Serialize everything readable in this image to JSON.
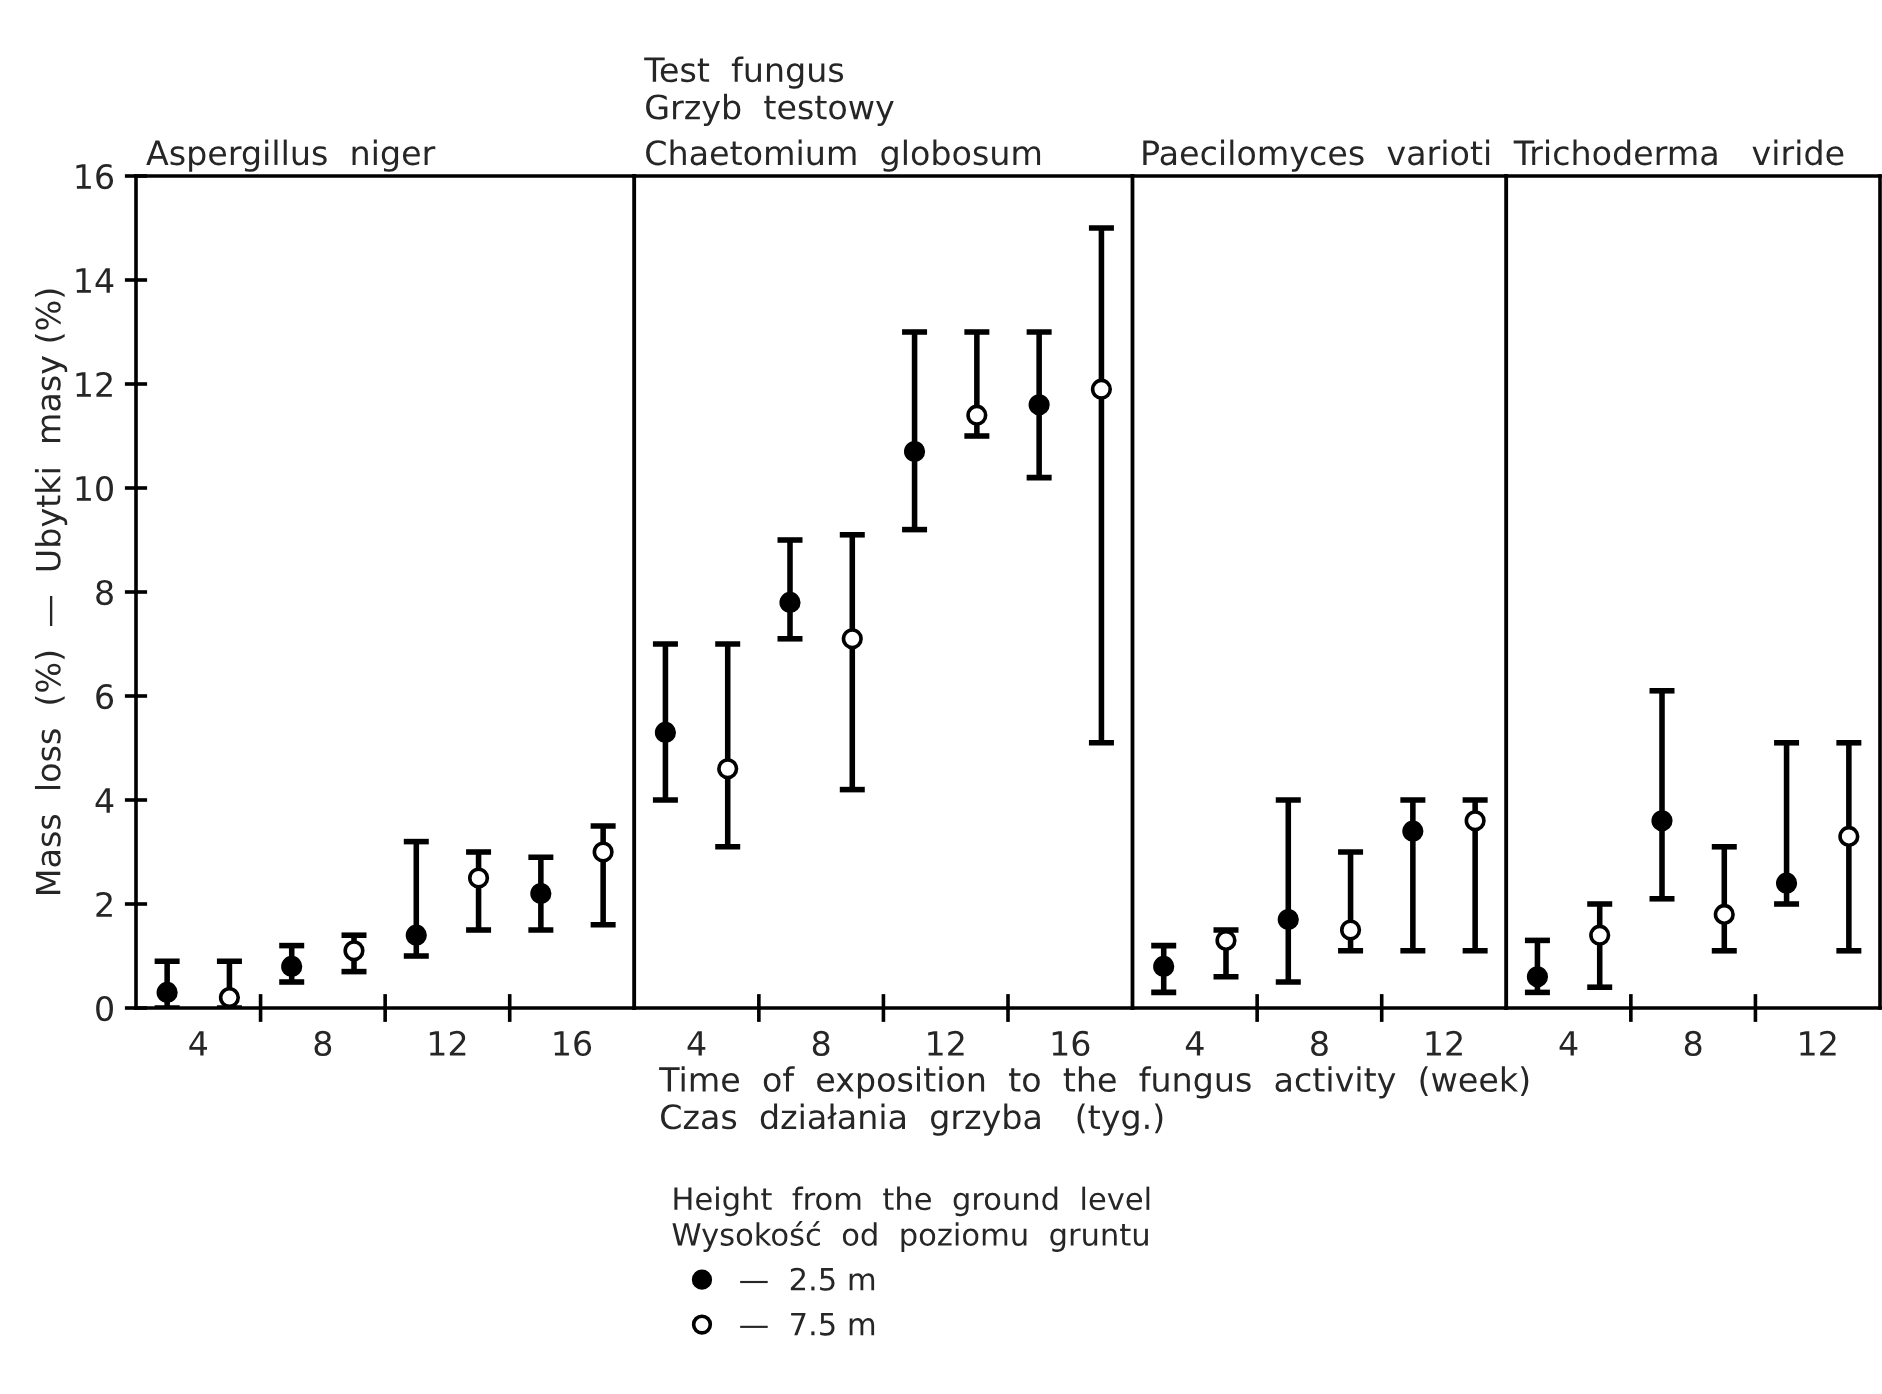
{
  "chart_data": [
    {
      "type": "scatter",
      "title": "Aspergillus  niger",
      "ylabel": "Mass  loss  (%)  —  Ubytki  masy (%)",
      "xlim": [
        2,
        18
      ],
      "xticks": [
        {
          "value": 4,
          "label": "4"
        },
        {
          "value": 6,
          "label": null
        },
        {
          "value": 8,
          "label": "8"
        },
        {
          "value": 10,
          "label": null
        },
        {
          "value": 12,
          "label": "12"
        },
        {
          "value": 14,
          "label": null
        },
        {
          "value": 16,
          "label": "16"
        }
      ],
      "ylim": [
        0,
        16
      ],
      "yticks": [
        0,
        2,
        4,
        6,
        8,
        10,
        12,
        14,
        16
      ],
      "marker": "circle",
      "grid": false,
      "series": [
        {
          "color": "#000000",
          "x": [
            3,
            7,
            11,
            15
          ],
          "values": [
            0.3,
            0.8,
            1.4,
            2.2
          ],
          "errors": [
            [
              0,
              0.9
            ],
            [
              0.5,
              1.2
            ],
            [
              1.0,
              3.2
            ],
            [
              1.5,
              2.9
            ]
          ]
        },
        {
          "color": "#ffffff",
          "x": [
            5,
            9,
            13,
            17
          ],
          "values": [
            0.2,
            1.1,
            2.5,
            3.0
          ],
          "errors": [
            [
              0,
              0.9
            ],
            [
              0.7,
              1.4
            ],
            [
              1.5,
              3.0
            ],
            [
              1.6,
              3.5
            ]
          ]
        }
      ]
    },
    {
      "type": "scatter",
      "title": "Chaetomium  globosum",
      "annotations": [
        "Test  fungus\nGrzyb  testowy"
      ],
      "xlabel": "Time  of  exposition  to  the  fungus  activity  (week)\nCzas  działania  grzyba   (tyg.)",
      "legend_title": "Height  from  the  ground  level\nWysokość  od  poziomu  gruntu",
      "legend": "bottom",
      "tick_labels": "x",
      "xlim": [
        2,
        18
      ],
      "xticks": [
        {
          "value": 4,
          "label": "4"
        },
        {
          "value": 6,
          "label": null
        },
        {
          "value": 8,
          "label": "8"
        },
        {
          "value": 10,
          "label": null
        },
        {
          "value": 12,
          "label": "12"
        },
        {
          "value": 14,
          "label": null
        },
        {
          "value": 16,
          "label": "16"
        }
      ],
      "ylim": [
        0,
        16
      ],
      "marker": "circle",
      "grid": false,
      "series": [
        {
          "name": "—  2.5 m",
          "color": "#000000",
          "x": [
            3,
            7,
            11,
            15
          ],
          "values": [
            5.3,
            7.8,
            10.7,
            11.6
          ],
          "errors": [
            [
              4.0,
              7.0
            ],
            [
              7.1,
              9.0
            ],
            [
              9.2,
              13.0
            ],
            [
              10.2,
              13.0
            ]
          ]
        },
        {
          "name": "—  7.5 m",
          "color": "#ffffff",
          "x": [
            5,
            9,
            13,
            17
          ],
          "values": [
            4.6,
            7.1,
            11.4,
            11.9
          ],
          "errors": [
            [
              3.1,
              7.0
            ],
            [
              4.2,
              9.1
            ],
            [
              11.0,
              13.0
            ],
            [
              5.1,
              15.0
            ]
          ]
        }
      ]
    },
    {
      "type": "scatter",
      "title": "Paecilomyces  varioti",
      "tick_labels": "x",
      "xlim": [
        2,
        14
      ],
      "xticks": [
        {
          "value": 4,
          "label": "4"
        },
        {
          "value": 6,
          "label": null
        },
        {
          "value": 8,
          "label": "8"
        },
        {
          "value": 10,
          "label": null
        },
        {
          "value": 12,
          "label": "12"
        }
      ],
      "ylim": [
        0,
        16
      ],
      "marker": "circle",
      "grid": false,
      "series": [
        {
          "color": "#000000",
          "x": [
            3,
            7,
            11
          ],
          "values": [
            0.8,
            1.7,
            3.4
          ],
          "errors": [
            [
              0.3,
              1.2
            ],
            [
              0.5,
              4.0
            ],
            [
              1.1,
              4.0
            ]
          ]
        },
        {
          "color": "#ffffff",
          "x": [
            5,
            9,
            13
          ],
          "values": [
            1.3,
            1.5,
            3.6
          ],
          "errors": [
            [
              0.6,
              1.5
            ],
            [
              1.1,
              3.0
            ],
            [
              1.1,
              4.0
            ]
          ]
        }
      ]
    },
    {
      "type": "scatter",
      "title": "Trichoderma   viride",
      "tick_labels": "x",
      "xlim": [
        2,
        14
      ],
      "xticks": [
        {
          "value": 4,
          "label": "4"
        },
        {
          "value": 6,
          "label": null
        },
        {
          "value": 8,
          "label": "8"
        },
        {
          "value": 10,
          "label": null
        },
        {
          "value": 12,
          "label": "12"
        }
      ],
      "ylim": [
        0,
        16
      ],
      "marker": "circle",
      "grid": false,
      "series": [
        {
          "color": "#000000",
          "x": [
            3,
            7,
            11
          ],
          "values": [
            0.6,
            3.6,
            2.4
          ],
          "errors": [
            [
              0.3,
              1.3
            ],
            [
              2.1,
              6.1
            ],
            [
              2.0,
              5.1
            ]
          ]
        },
        {
          "color": "#ffffff",
          "x": [
            5,
            9,
            13
          ],
          "values": [
            1.4,
            1.8,
            3.3
          ],
          "errors": [
            [
              0.4,
              2.0
            ],
            [
              1.1,
              3.1
            ],
            [
              1.1,
              5.1
            ]
          ]
        }
      ]
    }
  ]
}
